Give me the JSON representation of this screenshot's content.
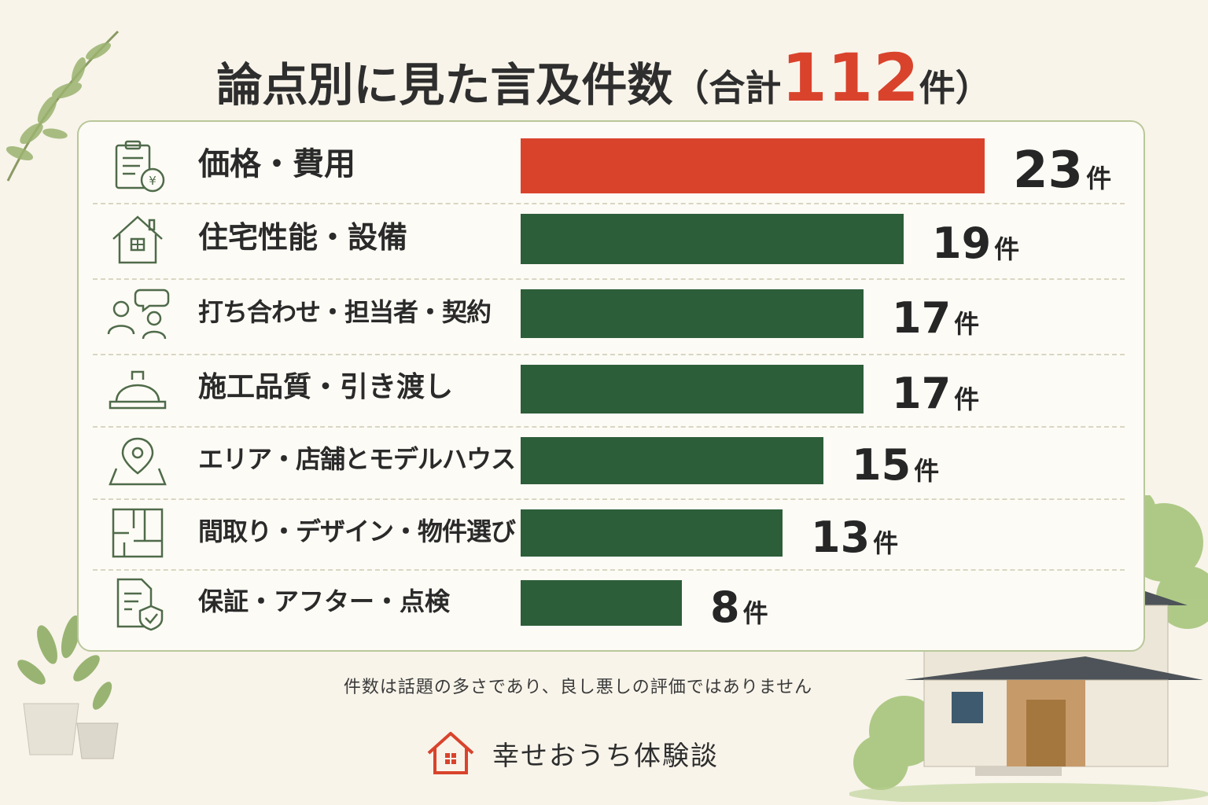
{
  "title": {
    "main": "論点別に見た言及件数",
    "paren_open": "（合計",
    "total": "112",
    "unit": "件",
    "paren_close": "）"
  },
  "unit": "件",
  "colors": {
    "highlight": "#d9432c",
    "bar": "#2d5e3a",
    "accent_text": "#d9432c"
  },
  "chart_data": {
    "type": "bar",
    "orientation": "horizontal",
    "categories": [
      "価格・費用",
      "住宅性能・設備",
      "打ち合わせ・担当者・契約",
      "施工品質・引き渡し",
      "エリア・店舗とモデルハウス",
      "間取り・デザイン・物件選び",
      "保証・アフター・点検"
    ],
    "values": [
      23,
      19,
      17,
      17,
      15,
      13,
      8
    ],
    "icons": [
      "invoice-yen-icon",
      "house-icon",
      "people-chat-icon",
      "hard-hat-icon",
      "map-pin-icon",
      "floor-plan-icon",
      "document-shield-icon"
    ],
    "highlight_index": 0,
    "xlim": [
      0,
      23
    ],
    "grid": false
  },
  "note": "件数は話題の多さであり、良し悪しの評価ではありません",
  "brand": {
    "name": "幸せおうち体験談",
    "icon": "house-logo-icon"
  }
}
